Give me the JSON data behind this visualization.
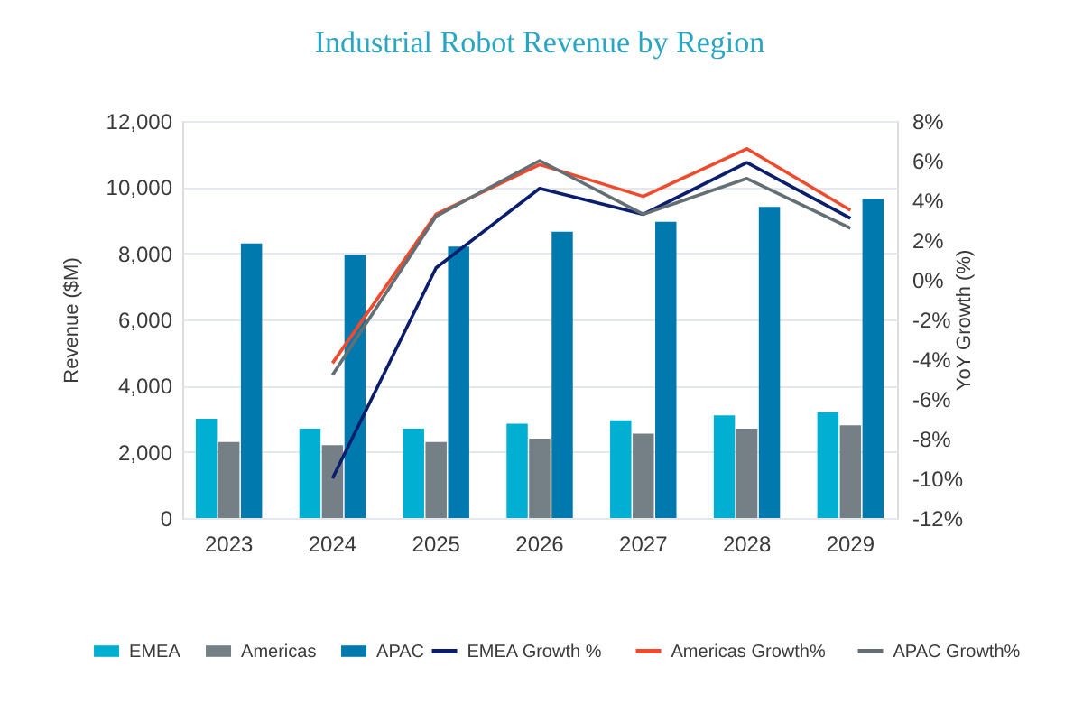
{
  "chart_data": {
    "type": "bar",
    "title": "Industrial Robot Revenue by Region",
    "categories": [
      "2023",
      "2024",
      "2025",
      "2026",
      "2027",
      "2028",
      "2029"
    ],
    "ylabel": "Revenue ($M)",
    "y2label": "YoY Growth (%)",
    "ylim": [
      0,
      12000
    ],
    "yticks": [
      0,
      {
        "value": 2000,
        "label": "2,000"
      },
      {
        "value": 4000,
        "label": "4,000"
      },
      {
        "value": 6000,
        "label": "6,000"
      },
      {
        "value": 8000,
        "label": "8,000"
      },
      {
        "value": 10000,
        "label": "10,000"
      },
      {
        "value": 12000,
        "label": "12,000"
      }
    ],
    "y2lim": [
      -12,
      8
    ],
    "y2ticks": [
      {
        "value": -12,
        "label": "-12%"
      },
      {
        "value": -10,
        "label": "-10%"
      },
      {
        "value": -8,
        "label": "-8%"
      },
      {
        "value": -6,
        "label": "-6%"
      },
      {
        "value": -4,
        "label": "-4%"
      },
      {
        "value": -2,
        "label": "-2%"
      },
      {
        "value": 0,
        "label": "0%"
      },
      {
        "value": 2,
        "label": "2%"
      },
      {
        "value": 4,
        "label": "4%"
      },
      {
        "value": 6,
        "label": "6%"
      },
      {
        "value": 8,
        "label": "8%"
      }
    ],
    "series": [
      {
        "name": "EMEA",
        "color": "#00afd2",
        "values": [
          3000,
          2700,
          2700,
          2850,
          2950,
          3100,
          3200
        ]
      },
      {
        "name": "Americas",
        "color": "#757f86",
        "values": [
          2300,
          2200,
          2300,
          2400,
          2550,
          2700,
          2800
        ]
      },
      {
        "name": "APAC",
        "color": "#0079ae",
        "values": [
          8300,
          7950,
          8200,
          8650,
          8950,
          9400,
          9650
        ]
      },
      {
        "name": "EMEA Growth %",
        "type": "line",
        "axis": "y2",
        "color": "#0b1e6d",
        "values": [
          null,
          -10,
          0.6,
          4.6,
          3.3,
          5.9,
          3.1
        ]
      },
      {
        "name": "Americas Growth%",
        "type": "line",
        "axis": "y2",
        "color": "#ef4a2b",
        "values": [
          null,
          -4.2,
          3.3,
          5.8,
          4.2,
          6.6,
          3.5
        ]
      },
      {
        "name": "APAC Growth%",
        "type": "line",
        "axis": "y2",
        "color": "#636e75",
        "values": [
          null,
          -4.8,
          3.2,
          6.0,
          3.3,
          5.1,
          2.6
        ]
      }
    ],
    "grid": "y",
    "legend": "bottom",
    "line_style": "solid"
  }
}
